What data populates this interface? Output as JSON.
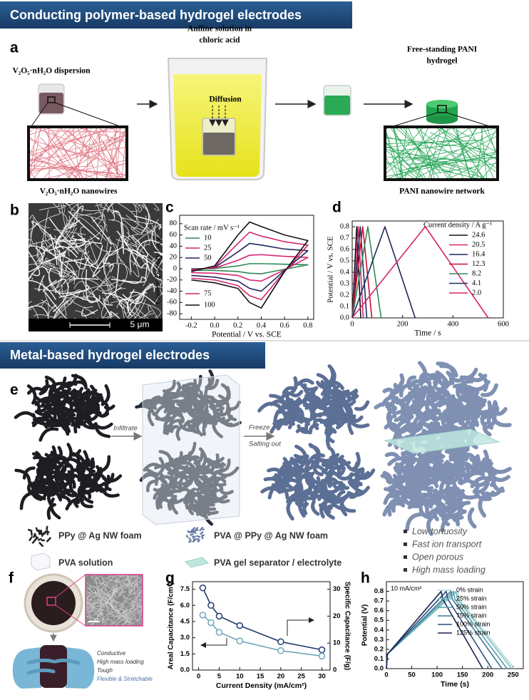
{
  "sections": [
    "Conducting polymer-based hydrogel electrodes",
    "Metal-based hydrogel electrodes"
  ],
  "panels": [
    "a",
    "b",
    "c",
    "d",
    "e",
    "f",
    "g",
    "h"
  ],
  "panel_a": {
    "dispersion": "V₂O₅·nH₂O dispersion",
    "solution": [
      "Aniline solution in",
      "chloric acid"
    ],
    "diffusion": "Diffusion",
    "product": [
      "Free-standing PANI",
      "hydrogel"
    ],
    "nanowires": "V₂O₅·nH₂O nanowires",
    "network": "PANI nanowire network"
  },
  "panel_b": {
    "scale_bar": "5 μm"
  },
  "panel_e": {
    "steps": [
      "Infiltrate",
      "Freeze",
      "Salting out"
    ],
    "legend": [
      "PPy @ Ag NW foam",
      "PVA @ PPy @ Ag NW foam",
      "PVA solution",
      "PVA gel separator / electrolyte"
    ],
    "features": [
      "Low tortuosity",
      "Fast ion transport",
      "Open porous",
      "High mass loading"
    ]
  },
  "panel_f": {
    "features": [
      "Conductive",
      "High mass loading",
      "Tough",
      "Flexible & Stretchable"
    ]
  },
  "chart_data": [
    {
      "type": "line",
      "xlabel": "Potential / V vs. SCE",
      "ylabel": "Current Density / A g⁻¹",
      "legend_title": "Scan rate / mV s⁻¹",
      "x": [
        -0.2,
        0,
        0.2,
        0.3,
        0.4,
        0.6,
        0.8,
        0.6,
        0.4,
        0.3,
        0.2,
        0,
        -0.2
      ],
      "series": [
        {
          "name": "10",
          "color": "#2e8b57",
          "values": [
            0,
            0.5,
            5,
            9,
            9,
            8,
            7,
            -1,
            -9,
            -8,
            -5,
            -3,
            -3
          ]
        },
        {
          "name": "25",
          "color": "#d6246e",
          "values": [
            -1,
            1,
            15,
            24,
            25,
            22,
            20,
            -2,
            -22,
            -20,
            -12,
            -8,
            -7
          ]
        },
        {
          "name": "50",
          "color": "#1f2a5a",
          "values": [
            -2,
            2,
            30,
            45,
            42,
            35,
            32,
            -3,
            -40,
            -35,
            -22,
            -15,
            -12
          ]
        },
        {
          "name": "75",
          "color": "#d6246e",
          "values": [
            -3,
            3,
            45,
            65,
            58,
            48,
            42,
            -5,
            -55,
            -48,
            -30,
            -20,
            -17
          ]
        },
        {
          "name": "100",
          "color": "#111111",
          "values": [
            -5,
            5,
            60,
            83,
            75,
            60,
            50,
            -5,
            -70,
            -60,
            -35,
            -25,
            -20
          ]
        }
      ],
      "xlim": [
        -0.3,
        0.85
      ],
      "xticks": [
        -0.2,
        {
          "value": 0,
          "label": "0.0"
        },
        0.2,
        0.4,
        0.6,
        0.8
      ],
      "ylim": [
        -90,
        95
      ],
      "yticks": [
        -80,
        -60,
        -40,
        -20,
        0,
        20,
        40,
        60,
        80
      ]
    },
    {
      "type": "line",
      "xlabel": "Time / s",
      "ylabel": "Potential / V vs. SCE",
      "legend_title": "Current density / A g⁻¹",
      "series": [
        {
          "name": "24.6",
          "color": "#111111",
          "x": [
            0,
            18,
            34
          ],
          "values": [
            0,
            0.8,
            0
          ]
        },
        {
          "name": "20.5",
          "color": "#d6246e",
          "x": [
            0,
            24,
            44
          ],
          "values": [
            0,
            0.8,
            0
          ]
        },
        {
          "name": "16.4",
          "color": "#1f2a5a",
          "x": [
            0,
            32,
            58
          ],
          "values": [
            0,
            0.8,
            0
          ]
        },
        {
          "name": "12.3",
          "color": "#c8102e",
          "x": [
            0,
            42,
            78
          ],
          "values": [
            0,
            0.8,
            0
          ]
        },
        {
          "name": "8.2",
          "color": "#2e8b57",
          "x": [
            0,
            62,
            115
          ],
          "values": [
            0,
            0.8,
            0
          ]
        },
        {
          "name": "4.1",
          "color": "#1f2a5a",
          "x": [
            0,
            130,
            250
          ],
          "values": [
            0,
            0.8,
            0
          ]
        },
        {
          "name": "2.0",
          "color": "#d6246e",
          "x": [
            0,
            290,
            540
          ],
          "values": [
            0,
            0.8,
            0
          ]
        }
      ],
      "xlim": [
        0,
        600
      ],
      "xticks": [
        0,
        200,
        400,
        600
      ],
      "ylim": [
        0,
        0.85
      ],
      "yticks": [
        {
          "value": 0,
          "label": "0.0"
        },
        0.1,
        0.2,
        0.3,
        0.4,
        0.5,
        0.6,
        0.7,
        0.8
      ]
    },
    {
      "type": "line",
      "markers": true,
      "xlabel": "Current Density (mA/cm²)",
      "ylabel": "Areal Capacitance (F/cm²)",
      "y2label": "Specific Capacitance (F/g)",
      "x": [
        1,
        3,
        5,
        10,
        20,
        30
      ],
      "series": [
        {
          "color": "#1f3a6e",
          "axis": "y2",
          "values": [
            30.5,
            24,
            20,
            16.5,
            10.5,
            7.5
          ]
        },
        {
          "color": "#6fa8b8",
          "values": [
            5.1,
            4.4,
            3.5,
            2.7,
            1.8,
            1.3
          ]
        }
      ],
      "xlim": [
        -1.5,
        32
      ],
      "xticks": [
        0,
        5,
        10,
        15,
        20,
        25,
        30
      ],
      "ylim": [
        0,
        8.2
      ],
      "yticks": [
        {
          "value": 0,
          "label": "0.0"
        },
        1.5,
        {
          "value": 3,
          "label": "3.0"
        },
        4.5,
        {
          "value": 6,
          "label": "6.0"
        },
        7.5
      ],
      "y2lim": [
        0,
        32.8
      ],
      "y2ticks": [
        0,
        10,
        20,
        30
      ]
    },
    {
      "type": "line",
      "xlabel": "Time (s)",
      "ylabel": "Potential (V)",
      "annotation": "10 mA/cm²",
      "series": [
        {
          "name": "0% strain",
          "color": "#a8d8d4",
          "x": [
            0,
            2,
            140,
            143,
            252
          ],
          "values": [
            0,
            0.15,
            0.8,
            0.72,
            0
          ]
        },
        {
          "name": "25% strain",
          "color": "#7fbfc0",
          "x": [
            0,
            2,
            137,
            140,
            247
          ],
          "values": [
            0,
            0.15,
            0.8,
            0.72,
            0
          ]
        },
        {
          "name": "50% strain",
          "color": "#5a9db0",
          "x": [
            0,
            2,
            132,
            135,
            238
          ],
          "values": [
            0,
            0.15,
            0.8,
            0.72,
            0
          ]
        },
        {
          "name": "75% strain",
          "color": "#3f7a9a",
          "x": [
            0,
            2,
            127,
            130,
            228
          ],
          "values": [
            0,
            0.15,
            0.8,
            0.72,
            0
          ]
        },
        {
          "name": "100% strain",
          "color": "#2c4f7d",
          "x": [
            0,
            2,
            118,
            121,
            208
          ],
          "values": [
            0,
            0.15,
            0.8,
            0.72,
            0
          ]
        },
        {
          "name": "125% strain",
          "color": "#1a2350",
          "x": [
            0,
            2,
            108,
            111,
            190
          ],
          "values": [
            0,
            0.15,
            0.8,
            0.72,
            0
          ]
        }
      ],
      "xlim": [
        0,
        270
      ],
      "xticks": [
        0,
        50,
        100,
        150,
        200,
        250
      ],
      "ylim": [
        0,
        0.9
      ],
      "yticks": [
        {
          "value": 0,
          "label": "0.0"
        },
        0.1,
        0.2,
        0.3,
        0.4,
        0.5,
        0.6,
        0.7,
        0.8
      ]
    }
  ]
}
